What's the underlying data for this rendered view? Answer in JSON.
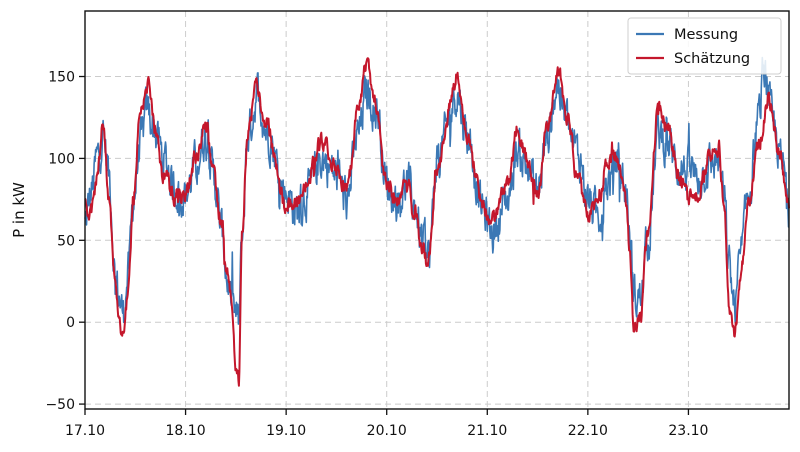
{
  "chart_data": {
    "type": "line",
    "title": "",
    "xlabel": "",
    "ylabel": "P in kW",
    "x_tick_labels": [
      "17.10",
      "18.10",
      "19.10",
      "20.10",
      "21.10",
      "22.10",
      "23.10"
    ],
    "x_range_days": [
      0,
      7
    ],
    "ylim": [
      -53,
      190
    ],
    "y_ticks": [
      -50,
      0,
      50,
      100,
      150
    ],
    "grid": true,
    "legend_position": "top-right",
    "series": [
      {
        "name": "Messung",
        "color": "#3b78b5",
        "anchors_x": [
          0.0,
          0.06,
          0.12,
          0.18,
          0.24,
          0.3,
          0.34,
          0.38,
          0.43,
          0.48,
          0.55,
          0.62,
          0.68,
          0.72,
          0.78,
          0.9,
          1.0,
          1.1,
          1.2,
          1.28,
          1.36,
          1.42,
          1.48,
          1.53,
          1.56,
          1.62,
          1.72,
          1.8,
          2.0,
          2.1,
          2.2,
          2.35,
          2.5,
          2.6,
          2.72,
          2.8,
          2.9,
          3.0,
          3.1,
          3.2,
          3.28,
          3.35,
          3.42,
          3.5,
          3.7,
          3.8,
          3.95,
          4.05,
          4.2,
          4.3,
          4.4,
          4.5,
          4.6,
          4.7,
          4.78,
          4.85,
          4.92,
          5.0,
          5.1,
          5.2,
          5.3,
          5.38,
          5.42,
          5.46,
          5.52,
          5.6,
          5.7,
          5.8,
          5.9,
          6.0,
          6.1,
          6.2,
          6.3,
          6.36,
          6.4,
          6.46,
          6.52,
          6.6,
          6.7,
          6.75,
          6.85,
          6.95,
          7.0
        ],
        "anchors_y": [
          60,
          78,
          100,
          115,
          90,
          30,
          15,
          5,
          30,
          75,
          108,
          130,
          120,
          112,
          100,
          82,
          78,
          95,
          115,
          90,
          55,
          25,
          5,
          0,
          50,
          115,
          140,
          118,
          80,
          68,
          78,
          100,
          90,
          75,
          115,
          140,
          130,
          85,
          75,
          85,
          70,
          50,
          40,
          100,
          140,
          115,
          70,
          55,
          75,
          105,
          95,
          80,
          115,
          145,
          125,
          110,
          100,
          75,
          65,
          85,
          100,
          80,
          50,
          15,
          15,
          50,
          115,
          108,
          95,
          92,
          88,
          95,
          100,
          72,
          35,
          10,
          40,
          80,
          125,
          155,
          118,
          92,
          70
        ],
        "noise_amplitude": 13
      },
      {
        "name": "Schätzung",
        "color": "#c4172c",
        "anchors_x": [
          0.0,
          0.06,
          0.12,
          0.18,
          0.24,
          0.3,
          0.34,
          0.38,
          0.43,
          0.48,
          0.55,
          0.62,
          0.7,
          0.78,
          0.9,
          1.0,
          1.1,
          1.2,
          1.28,
          1.36,
          1.42,
          1.46,
          1.5,
          1.53,
          1.56,
          1.62,
          1.7,
          1.8,
          2.0,
          2.1,
          2.2,
          2.35,
          2.5,
          2.6,
          2.72,
          2.8,
          2.9,
          3.0,
          3.1,
          3.2,
          3.28,
          3.35,
          3.42,
          3.5,
          3.7,
          3.8,
          3.95,
          4.05,
          4.2,
          4.3,
          4.4,
          4.5,
          4.6,
          4.7,
          4.8,
          4.9,
          5.0,
          5.1,
          5.2,
          5.3,
          5.38,
          5.42,
          5.46,
          5.52,
          5.6,
          5.7,
          5.8,
          5.9,
          6.0,
          6.1,
          6.2,
          6.3,
          6.36,
          6.4,
          6.46,
          6.52,
          6.6,
          6.7,
          6.8,
          6.9,
          7.0
        ],
        "anchors_y": [
          72,
          66,
          88,
          124,
          72,
          28,
          0,
          -8,
          20,
          75,
          130,
          145,
          118,
          90,
          77,
          76,
          100,
          120,
          90,
          60,
          30,
          10,
          -25,
          -38,
          55,
          115,
          145,
          122,
          72,
          72,
          85,
          110,
          95,
          80,
          130,
          158,
          128,
          85,
          72,
          92,
          68,
          45,
          40,
          95,
          150,
          115,
          72,
          62,
          85,
          118,
          100,
          78,
          120,
          155,
          125,
          85,
          65,
          70,
          100,
          100,
          75,
          40,
          -8,
          8,
          55,
          132,
          118,
          90,
          75,
          78,
          100,
          108,
          65,
          10,
          -5,
          30,
          72,
          110,
          135,
          105,
          72
        ],
        "noise_amplitude": 5
      }
    ]
  }
}
